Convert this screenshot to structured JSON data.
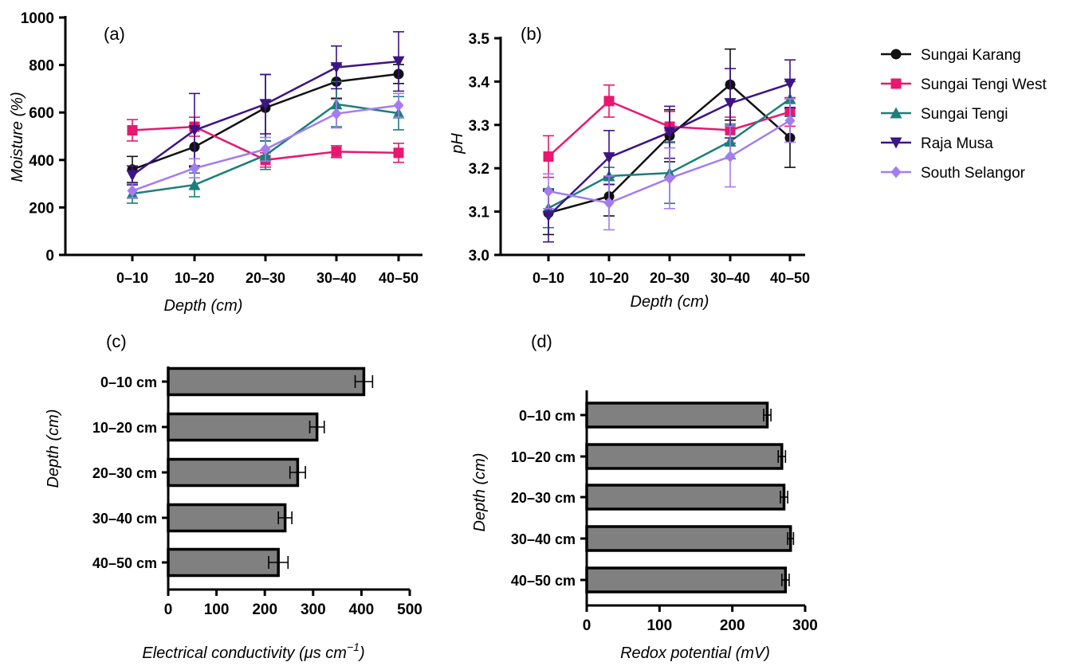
{
  "panels": {
    "a": "(a)",
    "b": "(b)",
    "c": "(c)",
    "d": "(d)"
  },
  "legend": {
    "entries": [
      "Sungai Karang",
      "Sungai Tengi West",
      "Sungai Tengi",
      "Raja Musa",
      "South Selangor"
    ],
    "placement": "right"
  },
  "colors": {
    "Sungai Karang": "#111111",
    "Sungai Tengi West": "#e8176f",
    "Sungai Tengi": "#1b7f7a",
    "Raja Musa": "#3d1486",
    "South Selangor": "#a57cf0",
    "bar_fill": "#808080"
  },
  "chart_data": [
    {
      "panel": "(a)",
      "type": "line",
      "categories": [
        "0–10",
        "10–20",
        "20–30",
        "30–40",
        "40–50"
      ],
      "xlabel": "Depth (cm)",
      "ylabel": "Moisture (%)",
      "ylim": [
        0,
        1000
      ],
      "yticks": [
        "0",
        "200",
        "400",
        "600",
        "800",
        "1000"
      ],
      "series": [
        {
          "name": "Sungai Karang",
          "marker": "circle",
          "values": [
            360,
            455,
            620,
            730,
            762
          ],
          "err": [
            55,
            80,
            140,
            70,
            40
          ]
        },
        {
          "name": "Sungai Tengi West",
          "marker": "square",
          "values": [
            525,
            540,
            400,
            435,
            430
          ],
          "err": [
            45,
            40,
            30,
            25,
            40
          ]
        },
        {
          "name": "Sungai Tengi",
          "marker": "triangle-up",
          "values": [
            258,
            295,
            420,
            635,
            597
          ],
          "err": [
            40,
            50,
            60,
            95,
            70
          ]
        },
        {
          "name": "Raja Musa",
          "marker": "triangle-down",
          "values": [
            335,
            525,
            635,
            790,
            815
          ],
          "err": [
            40,
            155,
            125,
            90,
            125
          ]
        },
        {
          "name": "South Selangor",
          "marker": "diamond",
          "values": [
            270,
            365,
            445,
            595,
            630
          ],
          "err": [
            30,
            40,
            50,
            60,
            50
          ]
        }
      ]
    },
    {
      "panel": "(b)",
      "type": "line",
      "categories": [
        "0–10",
        "10–20",
        "20–30",
        "30–40",
        "40–50"
      ],
      "xlabel": "Depth (cm)",
      "ylabel": "pH",
      "ylim": [
        3.0,
        3.5
      ],
      "yticks": [
        "3.0",
        "3.1",
        "3.2",
        "3.3",
        "3.4",
        "3.5"
      ],
      "series": [
        {
          "name": "Sungai Karang",
          "marker": "circle",
          "values": [
            3.097,
            3.135,
            3.275,
            3.393,
            3.27
          ],
          "err": [
            0.05,
            0.045,
            0.06,
            0.082,
            0.068
          ]
        },
        {
          "name": "Sungai Tengi West",
          "marker": "square",
          "values": [
            3.227,
            3.355,
            3.296,
            3.288,
            3.33
          ],
          "err": [
            0.048,
            0.037,
            0.035,
            0.03,
            0.033
          ]
        },
        {
          "name": "Sungai Tengi",
          "marker": "triangle-up",
          "values": [
            3.108,
            3.182,
            3.189,
            3.262,
            3.36
          ],
          "err": [
            0.045,
            0.02,
            0.07,
            0.04,
            0.04
          ]
        },
        {
          "name": "Raja Musa",
          "marker": "triangle-down",
          "values": [
            3.09,
            3.225,
            3.283,
            3.35,
            3.395
          ],
          "err": [
            0.06,
            0.062,
            0.06,
            0.08,
            0.055
          ]
        },
        {
          "name": "South Selangor",
          "marker": "diamond",
          "values": [
            3.147,
            3.12,
            3.177,
            3.227,
            3.31
          ],
          "err": [
            0.04,
            0.062,
            0.07,
            0.07,
            0.05
          ]
        }
      ]
    },
    {
      "panel": "(c)",
      "type": "bar",
      "orientation": "horizontal",
      "categories": [
        "0–10 cm",
        "10–20 cm",
        "20–30 cm",
        "30–40 cm",
        "40–50 cm"
      ],
      "values": [
        405,
        308,
        268,
        242,
        228
      ],
      "err": [
        18,
        15,
        16,
        14,
        20
      ],
      "xlabel": "Electrical conductivity (μs cm−1)",
      "xlabel_parts": {
        "main": "Electrical conductivity (",
        "mu": "μ",
        "unit": "s cm",
        "sup": "−1",
        "close": ")"
      },
      "ylabel": "Depth (cm)",
      "xlim": [
        0,
        500
      ],
      "xticks": [
        "0",
        "100",
        "200",
        "300",
        "400",
        "500"
      ]
    },
    {
      "panel": "(d)",
      "type": "bar",
      "orientation": "horizontal",
      "categories": [
        "0–10 cm",
        "10–20 cm",
        "20–30 cm",
        "30–40 cm",
        "40–50 cm"
      ],
      "values": [
        248,
        268,
        271,
        280,
        273
      ],
      "err": [
        5,
        5,
        5,
        4,
        5
      ],
      "xlabel": "Redox potential (mV)",
      "ylabel": "Depth (cm)",
      "xlim": [
        0,
        300
      ],
      "xticks": [
        "0",
        "100",
        "200",
        "300"
      ]
    }
  ]
}
